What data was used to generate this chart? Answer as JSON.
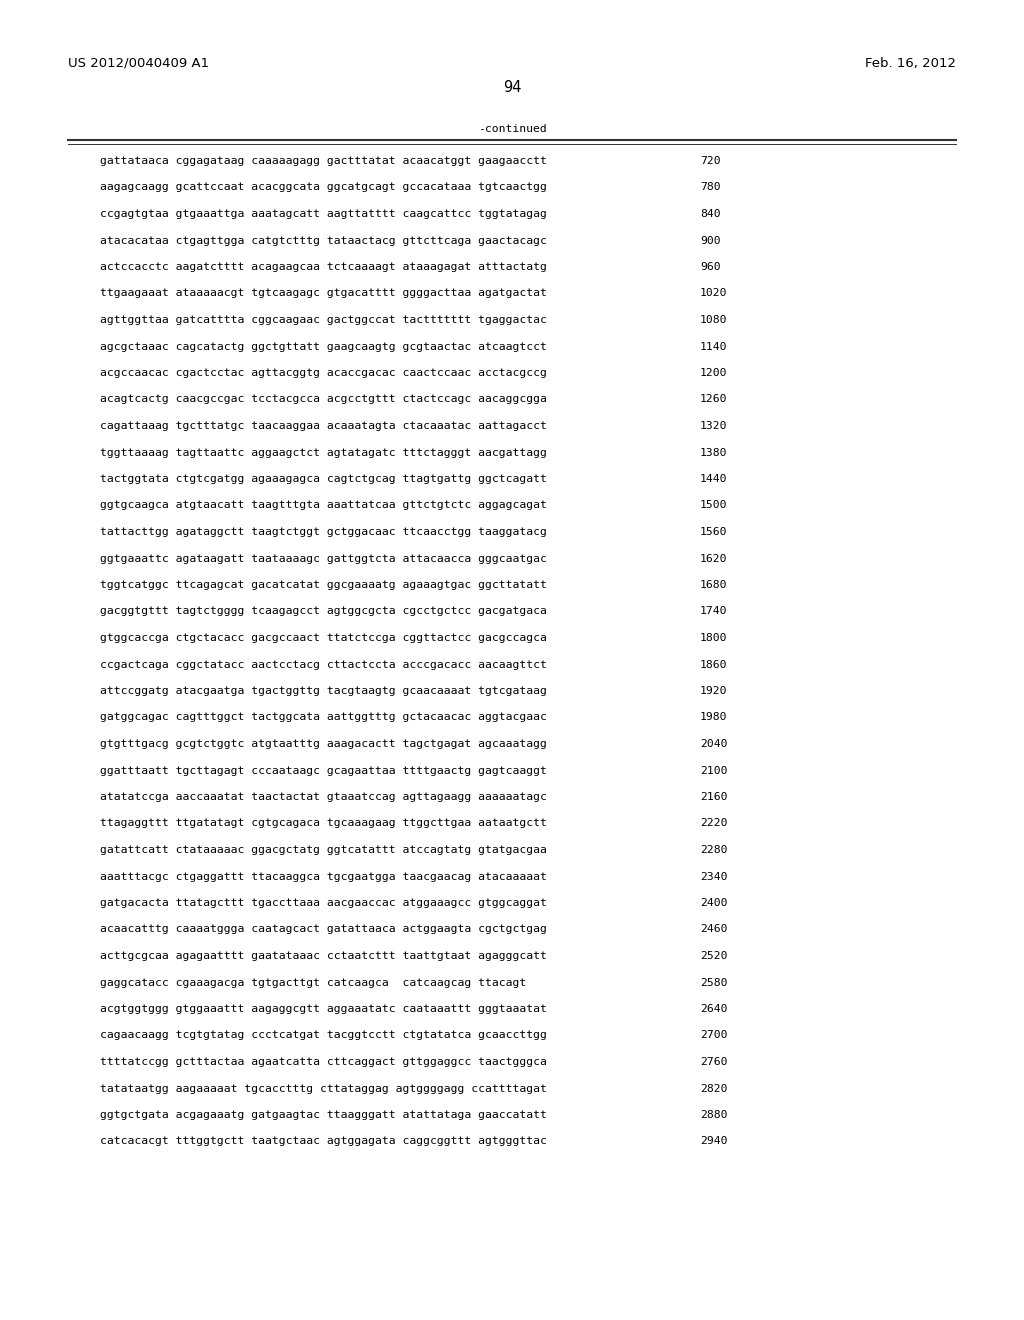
{
  "header_left": "US 2012/0040409 A1",
  "header_right": "Feb. 16, 2012",
  "page_number": "94",
  "continued_label": "-continued",
  "background_color": "#ffffff",
  "text_color": "#000000",
  "font_size_header": 9.5,
  "font_size_body": 8.2,
  "font_size_page": 10.5,
  "sequence_lines": [
    [
      "gattataaca cggagataag caaaaagagg gactttatat acaacatggt gaagaacctt",
      "720"
    ],
    [
      "aagagcaagg gcattccaat acacggcata ggcatgcagt gccacataaa tgtcaactgg",
      "780"
    ],
    [
      "ccgagtgtaa gtgaaattga aaatagcatt aagttatttt caagcattcc tggtatagag",
      "840"
    ],
    [
      "atacacataa ctgagttgga catgtctttg tataactacg gttcttcaga gaactacagc",
      "900"
    ],
    [
      "actccacctc aagatctttt acagaagcaa tctcaaaagt ataaagagat atttactatg",
      "960"
    ],
    [
      "ttgaagaaat ataaaaacgt tgtcaagagc gtgacatttt ggggacttaa agatgactat",
      "1020"
    ],
    [
      "agttggttaa gatcatttta cggcaagaac gactggccat tacttttttt tgaggactac",
      "1080"
    ],
    [
      "agcgctaaac cagcatactg ggctgttatt gaagcaagtg gcgtaactac atcaagtcct",
      "1140"
    ],
    [
      "acgccaacac cgactcctac agttacggtg acaccgacac caactccaac acctacgccg",
      "1200"
    ],
    [
      "acagtcactg caacgccgac tcctacgcca acgcctgttt ctactccagc aacaggcgga",
      "1260"
    ],
    [
      "cagattaaag tgctttatgc taacaaggaa acaaatagta ctacaaatac aattagacct",
      "1320"
    ],
    [
      "tggttaaaag tagttaattc aggaagctct agtatagatc tttctagggt aacgattagg",
      "1380"
    ],
    [
      "tactggtata ctgtcgatgg agaaagagca cagtctgcag ttagtgattg ggctcagatt",
      "1440"
    ],
    [
      "ggtgcaagca atgtaacatt taagtttgta aaattatcaa gttctgtctc aggagcagat",
      "1500"
    ],
    [
      "tattacttgg agataggctt taagtctggt gctggacaac ttcaacctgg taaggatacg",
      "1560"
    ],
    [
      "ggtgaaattc agataagatt taataaaagc gattggtcta attacaacca gggcaatgac",
      "1620"
    ],
    [
      "tggtcatggc ttcagagcat gacatcatat ggcgaaaatg agaaagtgac ggcttatatt",
      "1680"
    ],
    [
      "gacggtgttt tagtctgggg tcaagagcct agtggcgcta cgcctgctcc gacgatgaca",
      "1740"
    ],
    [
      "gtggcaccga ctgctacacc gacgccaact ttatctccga cggttactcc gacgccagca",
      "1800"
    ],
    [
      "ccgactcaga cggctatacc aactcctacg cttactccta acccgacacc aacaagttct",
      "1860"
    ],
    [
      "attccggatg atacgaatga tgactggttg tacgtaagtg gcaacaaaat tgtcgataag",
      "1920"
    ],
    [
      "gatggcagac cagtttggct tactggcata aattggtttg gctacaacac aggtacgaac",
      "1980"
    ],
    [
      "gtgtttgacg gcgtctggtc atgtaatttg aaagacactt tagctgagat agcaaatagg",
      "2040"
    ],
    [
      "ggatttaatt tgcttagagt cccaataagc gcagaattaa ttttgaactg gagtcaaggt",
      "2100"
    ],
    [
      "atatatccga aaccaaatat taactactat gtaaatccag agttagaagg aaaaaatagc",
      "2160"
    ],
    [
      "ttagaggttt ttgatatagt cgtgcagaca tgcaaagaag ttggcttgaa aataatgctt",
      "2220"
    ],
    [
      "gatattcatt ctataaaaac ggacgctatg ggtcatattt atccagtatg gtatgacgaa",
      "2280"
    ],
    [
      "aaatttacgc ctgaggattt ttacaaggca tgcgaatgga taacgaacag atacaaaaat",
      "2340"
    ],
    [
      "gatgacacta ttatagcttt tgaccttaaa aacgaaccac atggaaagcc gtggcaggat",
      "2400"
    ],
    [
      "acaacatttg caaaatggga caatagcact gatattaaca actggaagta cgctgctgag",
      "2460"
    ],
    [
      "acttgcgcaa agagaatttt gaatataaac cctaatcttt taattgtaat agagggcatt",
      "2520"
    ],
    [
      "gaggcatacc cgaaagacga tgtgacttgt catcaagca  catcaagcag ttacagt",
      "2580"
    ],
    [
      "acgtggtggg gtggaaattt aagaggcgtt aggaaatatc caataaattt gggtaaatat",
      "2640"
    ],
    [
      "cagaacaagg tcgtgtatag ccctcatgat tacggtcctt ctgtatatca gcaaccttgg",
      "2700"
    ],
    [
      "ttttatccgg gctttactaa agaatcatta cttcaggact gttggaggcc taactgggca",
      "2760"
    ],
    [
      "tatataatgg aagaaaaat tgcacctttg cttataggag agtggggagg ccattttagat",
      "2820"
    ],
    [
      "ggtgctgata acgagaaatg gatgaagtac ttaagggatt atattataga gaaccatatt",
      "2880"
    ],
    [
      "catcacacgt tttggtgctt taatgctaac agtggagata caggcggttt agtgggttac",
      "2940"
    ]
  ]
}
